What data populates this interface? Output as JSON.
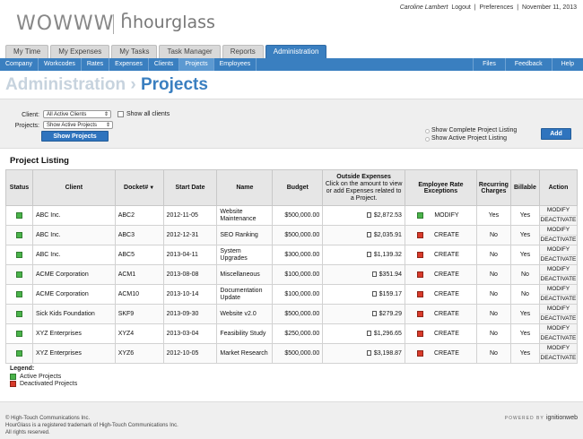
{
  "header": {
    "logo_text": "WOWWW",
    "brand_text": "hourglass",
    "user": "Caroline Lambert",
    "links": [
      "Logout",
      "Preferences"
    ],
    "date": "November 11, 2013"
  },
  "tabs": [
    "My Time",
    "My Expenses",
    "My Tasks",
    "Task Manager",
    "Reports",
    "Administration"
  ],
  "subnav": {
    "left": [
      "Company",
      "Workcodes",
      "Rates",
      "Expenses",
      "Clients",
      "Projects",
      "Employees"
    ],
    "right": [
      "Files",
      "Feedback",
      "Help"
    ]
  },
  "page_title": {
    "section": "Administration",
    "separator": "›",
    "current": "Projects"
  },
  "filters": {
    "client_label": "Client:",
    "client_value": "All Active Clients",
    "show_all_label": "Show all clients",
    "projects_label": "Projects:",
    "projects_value": "Show Active Projects",
    "show_button": "Show Projects",
    "option_complete": "Show Complete Project Listing",
    "option_active": "Show Active Project Listing",
    "add_button": "Add"
  },
  "listing": {
    "title": "Project Listing",
    "columns": [
      "Status",
      "Client",
      "Docket#",
      "Start Date",
      "Name",
      "Budget",
      "Outside Expenses",
      "Employee Rate Exceptions",
      "Recurring Charges",
      "Billable",
      "Action"
    ],
    "expenses_hint": "Click on the amount to view or add Expenses related to a Project.",
    "rows": [
      {
        "status": "green",
        "client": "ABC Inc.",
        "docket": "ABC2",
        "start": "2012-11-05",
        "name": "Website Maintenance",
        "budget": "$500,000.00",
        "expenses": "$2,872.53",
        "rate_status": "green",
        "rate_action": "MODIFY",
        "recurring": "Yes",
        "billable": "Yes"
      },
      {
        "status": "green",
        "client": "ABC Inc.",
        "docket": "ABC3",
        "start": "2012-12-31",
        "name": "SEO Ranking",
        "budget": "$500,000.00",
        "expenses": "$2,035.91",
        "rate_status": "red",
        "rate_action": "CREATE",
        "recurring": "No",
        "billable": "Yes"
      },
      {
        "status": "green",
        "client": "ABC Inc.",
        "docket": "ABC5",
        "start": "2013-04-11",
        "name": "System Upgrades",
        "budget": "$300,000.00",
        "expenses": "$1,139.32",
        "rate_status": "red",
        "rate_action": "CREATE",
        "recurring": "No",
        "billable": "Yes"
      },
      {
        "status": "green",
        "client": "ACME Corporation",
        "docket": "ACM1",
        "start": "2013-08-08",
        "name": "Miscellaneous",
        "budget": "$100,000.00",
        "expenses": "$351.94",
        "rate_status": "red",
        "rate_action": "CREATE",
        "recurring": "No",
        "billable": "No"
      },
      {
        "status": "green",
        "client": "ACME Corporation",
        "docket": "ACM10",
        "start": "2013-10-14",
        "name": "Documentation Update",
        "budget": "$100,000.00",
        "expenses": "$159.17",
        "rate_status": "red",
        "rate_action": "CREATE",
        "recurring": "No",
        "billable": "No"
      },
      {
        "status": "green",
        "client": "Sick Kids Foundation",
        "docket": "SKF9",
        "start": "2013-09-30",
        "name": "Website v2.0",
        "budget": "$500,000.00",
        "expenses": "$279.29",
        "rate_status": "red",
        "rate_action": "CREATE",
        "recurring": "No",
        "billable": "Yes"
      },
      {
        "status": "green",
        "client": "XYZ Enterprises",
        "docket": "XYZ4",
        "start": "2013-03-04",
        "name": "Feasibility Study",
        "budget": "$250,000.00",
        "expenses": "$1,296.65",
        "rate_status": "red",
        "rate_action": "CREATE",
        "recurring": "No",
        "billable": "Yes"
      },
      {
        "status": "green",
        "client": "XYZ Enterprises",
        "docket": "XYZ6",
        "start": "2012-10-05",
        "name": "Market Research",
        "budget": "$500,000.00",
        "expenses": "$3,198.87",
        "rate_status": "red",
        "rate_action": "CREATE",
        "recurring": "No",
        "billable": "Yes"
      }
    ],
    "action_modify": "MODIFY",
    "action_deactivate": "DEACTIVATE"
  },
  "legend": {
    "title": "Legend:",
    "active": "Active Projects",
    "deactivated": "Deactivated Projects"
  },
  "footer": {
    "copyright": "© High-Touch Communications Inc.",
    "trademark": "HourGlass is a registered trademark of High-Touch Communications Inc.",
    "rights": "All rights reserved.",
    "powered_prefix": "POWERED BY",
    "powered_brand": "ignitionweb"
  },
  "colors": {
    "accent": "#3a7fc0",
    "active_status": "#4ab34a",
    "inactive_status": "#d83a2a"
  }
}
